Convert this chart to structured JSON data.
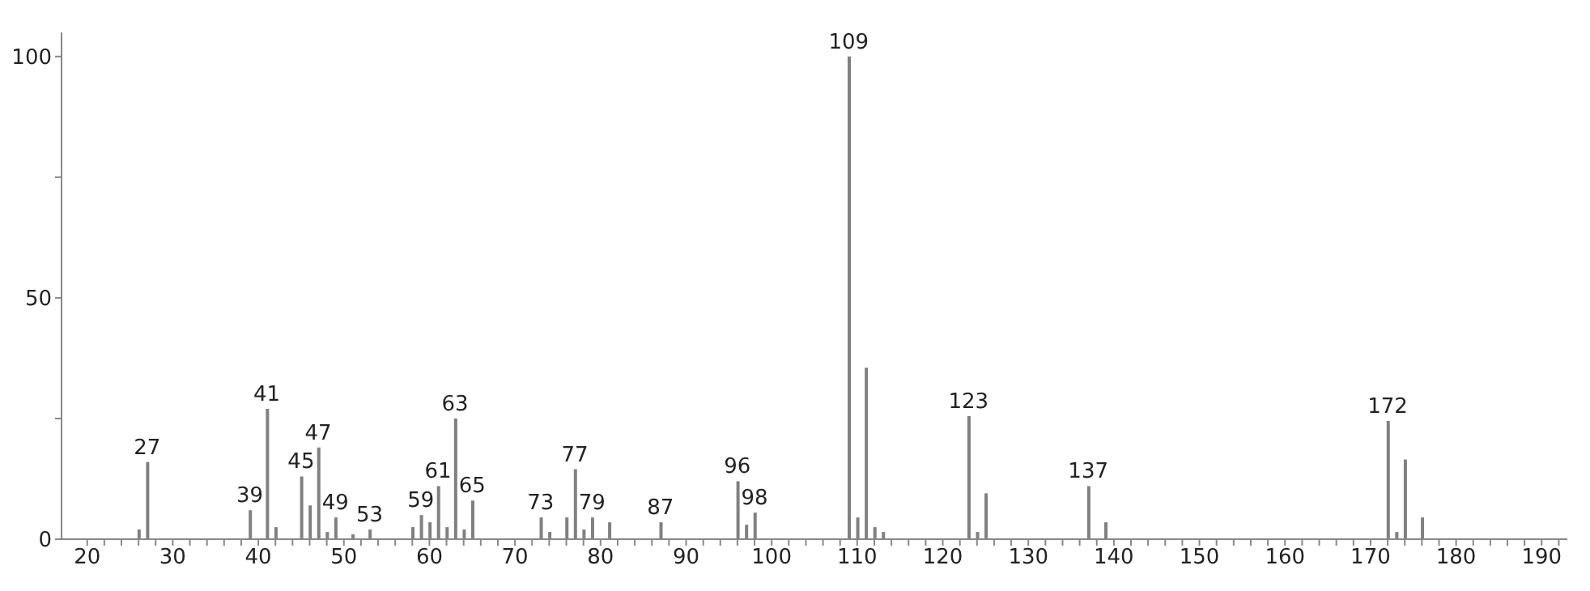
{
  "chart_data": {
    "type": "bar",
    "color": "#808080",
    "x": [
      26,
      27,
      39,
      41,
      42,
      45,
      46,
      47,
      48,
      49,
      51,
      53,
      58,
      59,
      60,
      61,
      62,
      63,
      64,
      65,
      73,
      74,
      76,
      77,
      78,
      79,
      81,
      87,
      96,
      97,
      98,
      109,
      110,
      111,
      112,
      113,
      123,
      124,
      125,
      137,
      139,
      172,
      173,
      174,
      176
    ],
    "values": [
      2,
      16,
      6,
      27,
      2.5,
      13,
      7,
      19,
      1.5,
      4.5,
      1,
      2,
      2.5,
      5,
      3.5,
      11,
      2.5,
      25,
      2,
      8,
      4.5,
      1.5,
      4.5,
      14.5,
      2,
      4.5,
      3.5,
      3.5,
      12,
      3,
      5.5,
      100,
      4.5,
      35.5,
      2.5,
      1.5,
      25.5,
      1.5,
      9.5,
      11,
      3.5,
      24.5,
      1.5,
      16.5,
      4.5
    ],
    "annotations": [
      {
        "text": "27",
        "x": 27,
        "y": 16
      },
      {
        "text": "39",
        "x": 39,
        "y": 6
      },
      {
        "text": "41",
        "x": 41,
        "y": 27
      },
      {
        "text": "45",
        "x": 45,
        "y": 13
      },
      {
        "text": "47",
        "x": 47,
        "y": 19
      },
      {
        "text": "49",
        "x": 49,
        "y": 4.5
      },
      {
        "text": "53",
        "x": 53,
        "y": 2
      },
      {
        "text": "59",
        "x": 59,
        "y": 5
      },
      {
        "text": "61",
        "x": 61,
        "y": 11
      },
      {
        "text": "63",
        "x": 63,
        "y": 25
      },
      {
        "text": "65",
        "x": 65,
        "y": 8
      },
      {
        "text": "73",
        "x": 73,
        "y": 4.5
      },
      {
        "text": "77",
        "x": 77,
        "y": 14.5
      },
      {
        "text": "79",
        "x": 79,
        "y": 4.5
      },
      {
        "text": "87",
        "x": 87,
        "y": 3.5
      },
      {
        "text": "96",
        "x": 96,
        "y": 12
      },
      {
        "text": "98",
        "x": 98,
        "y": 5.5
      },
      {
        "text": "109",
        "x": 109,
        "y": 100
      },
      {
        "text": "123",
        "x": 123,
        "y": 25.5
      },
      {
        "text": "137",
        "x": 137,
        "y": 11
      },
      {
        "text": "172",
        "x": 172,
        "y": 24.5
      }
    ],
    "xlim": [
      17,
      193
    ],
    "xticks": [
      20,
      {
        "value": 22,
        "label": null
      },
      {
        "value": 24,
        "label": null
      },
      {
        "value": 26,
        "label": null
      },
      {
        "value": 28,
        "label": null
      },
      30,
      {
        "value": 32,
        "label": null
      },
      {
        "value": 34,
        "label": null
      },
      {
        "value": 36,
        "label": null
      },
      {
        "value": 38,
        "label": null
      },
      40,
      {
        "value": 42,
        "label": null
      },
      {
        "value": 44,
        "label": null
      },
      {
        "value": 46,
        "label": null
      },
      {
        "value": 48,
        "label": null
      },
      50,
      {
        "value": 52,
        "label": null
      },
      {
        "value": 54,
        "label": null
      },
      {
        "value": 56,
        "label": null
      },
      {
        "value": 58,
        "label": null
      },
      60,
      {
        "value": 62,
        "label": null
      },
      {
        "value": 64,
        "label": null
      },
      {
        "value": 66,
        "label": null
      },
      {
        "value": 68,
        "label": null
      },
      70,
      {
        "value": 72,
        "label": null
      },
      {
        "value": 74,
        "label": null
      },
      {
        "value": 76,
        "label": null
      },
      {
        "value": 78,
        "label": null
      },
      80,
      {
        "value": 82,
        "label": null
      },
      {
        "value": 84,
        "label": null
      },
      {
        "value": 86,
        "label": null
      },
      {
        "value": 88,
        "label": null
      },
      90,
      {
        "value": 92,
        "label": null
      },
      {
        "value": 94,
        "label": null
      },
      {
        "value": 96,
        "label": null
      },
      {
        "value": 98,
        "label": null
      },
      100,
      {
        "value": 102,
        "label": null
      },
      {
        "value": 104,
        "label": null
      },
      {
        "value": 106,
        "label": null
      },
      {
        "value": 108,
        "label": null
      },
      110,
      {
        "value": 112,
        "label": null
      },
      {
        "value": 114,
        "label": null
      },
      {
        "value": 116,
        "label": null
      },
      {
        "value": 118,
        "label": null
      },
      120,
      {
        "value": 122,
        "label": null
      },
      {
        "value": 124,
        "label": null
      },
      {
        "value": 126,
        "label": null
      },
      {
        "value": 128,
        "label": null
      },
      130,
      {
        "value": 132,
        "label": null
      },
      {
        "value": 134,
        "label": null
      },
      {
        "value": 136,
        "label": null
      },
      {
        "value": 138,
        "label": null
      },
      140,
      {
        "value": 142,
        "label": null
      },
      {
        "value": 144,
        "label": null
      },
      {
        "value": 146,
        "label": null
      },
      {
        "value": 148,
        "label": null
      },
      150,
      {
        "value": 152,
        "label": null
      },
      {
        "value": 154,
        "label": null
      },
      {
        "value": 156,
        "label": null
      },
      {
        "value": 158,
        "label": null
      },
      160,
      {
        "value": 162,
        "label": null
      },
      {
        "value": 164,
        "label": null
      },
      {
        "value": 166,
        "label": null
      },
      {
        "value": 168,
        "label": null
      },
      170,
      {
        "value": 172,
        "label": null
      },
      {
        "value": 174,
        "label": null
      },
      {
        "value": 176,
        "label": null
      },
      {
        "value": 178,
        "label": null
      },
      180,
      {
        "value": 182,
        "label": null
      },
      {
        "value": 184,
        "label": null
      },
      {
        "value": 186,
        "label": null
      },
      {
        "value": 188,
        "label": null
      },
      190,
      {
        "value": 192,
        "label": null
      }
    ],
    "ylim": [
      0,
      105
    ],
    "yticks": [
      0,
      {
        "value": 25,
        "label": null
      },
      50,
      {
        "value": 75,
        "label": null
      },
      100
    ],
    "grid": false,
    "legend": false
  }
}
